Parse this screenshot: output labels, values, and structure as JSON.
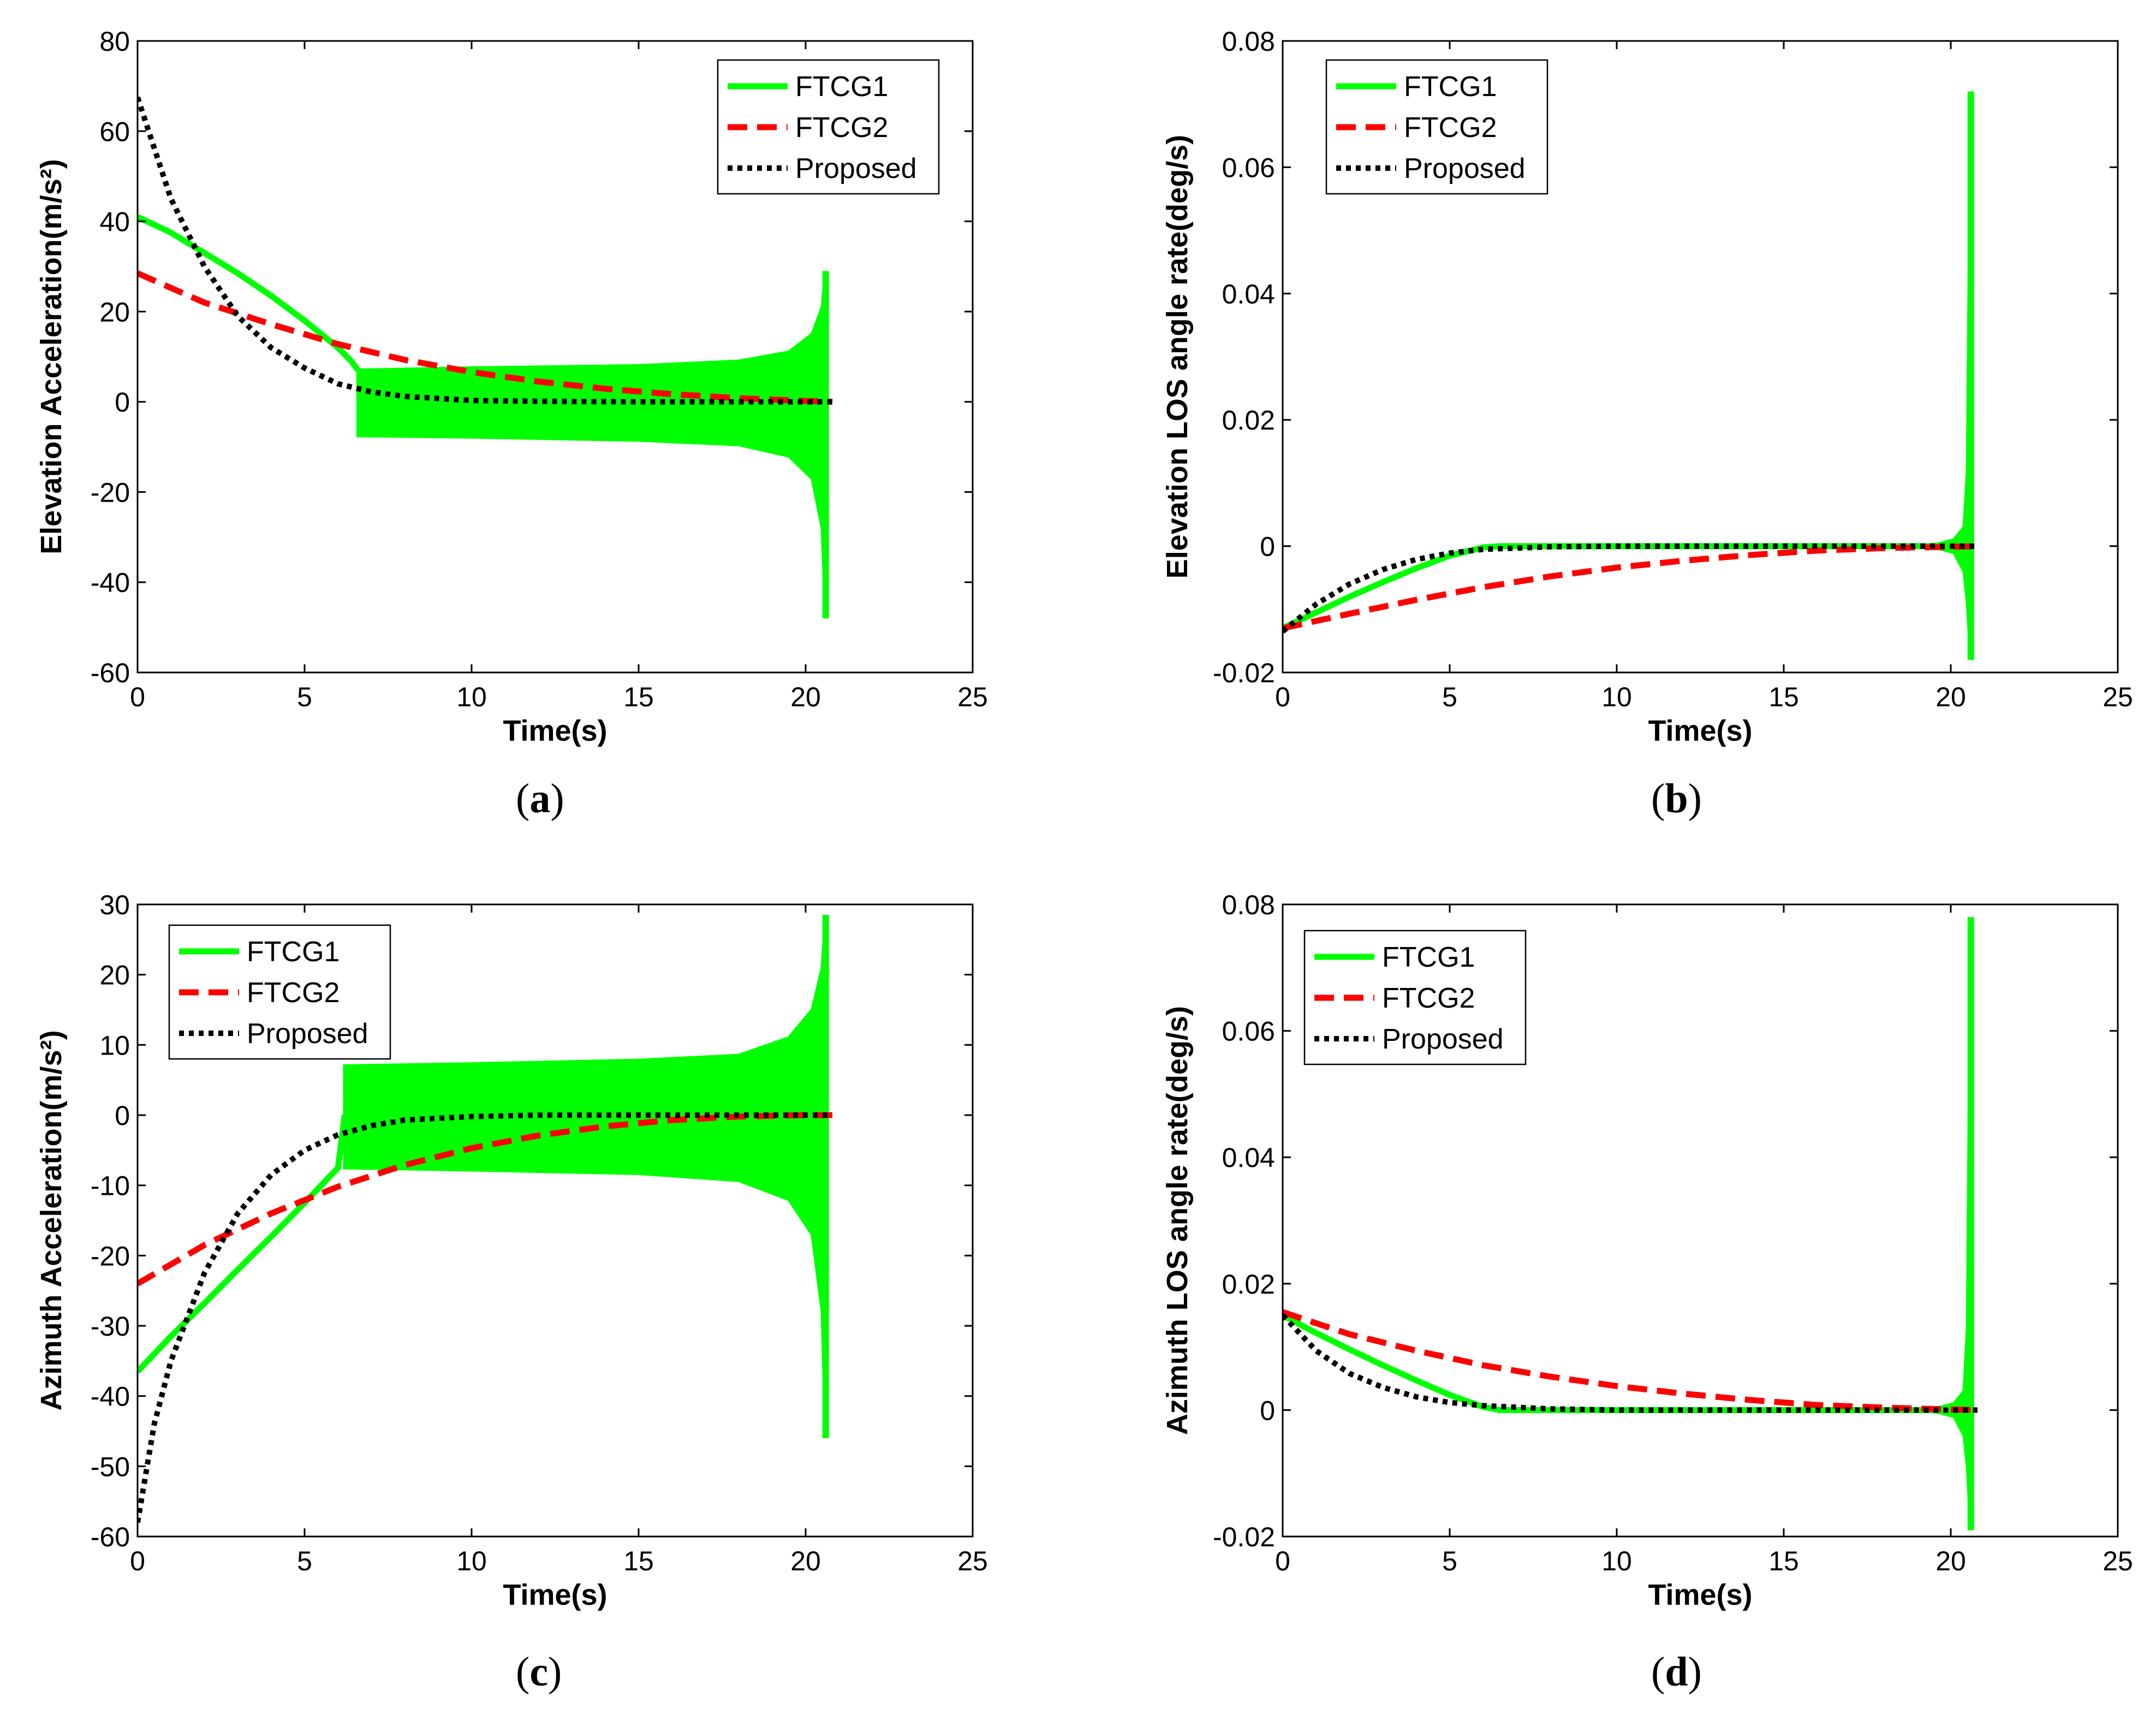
{
  "figure": {
    "panels": [
      {
        "caption_label": "a"
      },
      {
        "caption_label": "b"
      },
      {
        "caption_label": "c"
      },
      {
        "caption_label": "d"
      }
    ]
  },
  "colors": {
    "ftcg1": "#00ff00",
    "ftcg2": "#ff0000",
    "proposed": "#000000",
    "axes": "#000000",
    "background": "#ffffff"
  },
  "chart_data": [
    {
      "id": "a",
      "type": "line",
      "xlabel": "Time(s)",
      "ylabel": "Elevation Acceleration(m/s²)",
      "xlim": [
        0,
        25
      ],
      "ylim": [
        -60,
        80
      ],
      "xticks": [
        0,
        5,
        10,
        15,
        20,
        25
      ],
      "yticks": [
        -60,
        -40,
        -20,
        0,
        20,
        40,
        60,
        80
      ],
      "xtick_labels": [
        "0",
        "5",
        "10",
        "15",
        "20",
        "25"
      ],
      "ytick_labels": [
        "-60",
        "-40",
        "-20",
        "0",
        "20",
        "40",
        "60",
        "80"
      ],
      "legend_placement": "top-right",
      "series": [
        {
          "name": "FTCG1",
          "style": "solid",
          "x": [
            0,
            1,
            2,
            3,
            4,
            5,
            6,
            6.4,
            6.6
          ],
          "y": [
            41,
            37.5,
            33,
            28.5,
            23.5,
            18,
            12,
            9,
            7
          ]
        },
        {
          "name": "FTCG2",
          "style": "dashed",
          "x": [
            0,
            2,
            4,
            6,
            8,
            10,
            12,
            14,
            16,
            18,
            20,
            20.8
          ],
          "y": [
            28.5,
            22,
            17.2,
            12.8,
            9.3,
            6.6,
            4.5,
            2.9,
            1.7,
            0.8,
            0.2,
            0
          ]
        },
        {
          "name": "Proposed",
          "style": "dotted",
          "x": [
            0,
            1,
            2,
            3,
            4,
            5,
            6,
            7,
            8,
            10,
            12,
            15,
            20,
            20.8
          ],
          "y": [
            67.5,
            45,
            30,
            19,
            12,
            7.5,
            4,
            2.2,
            1.2,
            0.3,
            0.1,
            0,
            0,
            0
          ]
        }
      ],
      "oscillation_band": {
        "series": "FTCG1",
        "x_start": 6.6,
        "x_end": 20.6,
        "upper": [
          [
            6.6,
            7
          ],
          [
            10,
            7.5
          ],
          [
            15,
            8
          ],
          [
            18,
            9
          ],
          [
            19.5,
            11
          ],
          [
            20.2,
            15
          ],
          [
            20.5,
            21
          ],
          [
            20.6,
            29
          ]
        ],
        "lower": [
          [
            6.6,
            -7.5
          ],
          [
            10,
            -7.8
          ],
          [
            15,
            -8.5
          ],
          [
            18,
            -9.5
          ],
          [
            19.5,
            -12
          ],
          [
            20.2,
            -17
          ],
          [
            20.5,
            -28
          ],
          [
            20.6,
            -48
          ]
        ]
      }
    },
    {
      "id": "b",
      "type": "line",
      "xlabel": "Time(s)",
      "ylabel": "Elevation LOS angle rate(deg/s)",
      "xlim": [
        0,
        25
      ],
      "ylim": [
        -0.02,
        0.08
      ],
      "xticks": [
        0,
        5,
        10,
        15,
        20,
        25
      ],
      "yticks": [
        -0.02,
        0,
        0.02,
        0.04,
        0.06,
        0.08
      ],
      "xtick_labels": [
        "0",
        "5",
        "10",
        "15",
        "20",
        "25"
      ],
      "ytick_labels": [
        "-0.02",
        "0",
        "0.02",
        "0.04",
        "0.06",
        "0.08"
      ],
      "legend_placement": "top-left",
      "series": [
        {
          "name": "FTCG1",
          "style": "solid",
          "x": [
            0,
            1,
            2,
            3,
            4,
            5,
            6,
            6.5,
            20.6
          ],
          "y": [
            -0.013,
            -0.0105,
            -0.008,
            -0.0057,
            -0.0035,
            -0.0015,
            -0.0002,
            0,
            0
          ]
        },
        {
          "name": "FTCG2",
          "style": "dashed",
          "x": [
            0,
            2,
            4,
            6,
            8,
            10,
            12,
            14,
            16,
            18,
            20,
            20.8
          ],
          "y": [
            -0.013,
            -0.0107,
            -0.0085,
            -0.0065,
            -0.0048,
            -0.0034,
            -0.0023,
            -0.0014,
            -0.0007,
            -0.0003,
            -0.0001,
            0
          ]
        },
        {
          "name": "Proposed",
          "style": "dotted",
          "x": [
            0,
            1,
            2,
            3,
            4,
            5,
            6,
            8,
            10,
            15,
            20,
            20.8
          ],
          "y": [
            -0.0135,
            -0.0092,
            -0.006,
            -0.0037,
            -0.0021,
            -0.0011,
            -0.0005,
            -0.0001,
            0,
            0,
            0,
            0
          ]
        }
      ],
      "oscillation_band": {
        "series": "FTCG1",
        "x_start": 18.8,
        "x_end": 20.6,
        "upper": [
          [
            18.8,
            0
          ],
          [
            19.6,
            0.0003
          ],
          [
            20.1,
            0.001
          ],
          [
            20.4,
            0.003
          ],
          [
            20.5,
            0.012
          ],
          [
            20.6,
            0.072
          ]
        ],
        "lower": [
          [
            18.8,
            0
          ],
          [
            19.6,
            -0.0003
          ],
          [
            20.1,
            -0.001
          ],
          [
            20.4,
            -0.004
          ],
          [
            20.5,
            -0.009
          ],
          [
            20.6,
            -0.018
          ]
        ]
      }
    },
    {
      "id": "c",
      "type": "line",
      "xlabel": "Time(s)",
      "ylabel": "Azimuth Acceleration(m/s²)",
      "xlim": [
        0,
        25
      ],
      "ylim": [
        -60,
        30
      ],
      "xticks": [
        0,
        5,
        10,
        15,
        20,
        25
      ],
      "yticks": [
        -60,
        -50,
        -40,
        -30,
        -20,
        -10,
        0,
        10,
        20,
        30
      ],
      "xtick_labels": [
        "0",
        "5",
        "10",
        "15",
        "20",
        "25"
      ],
      "ytick_labels": [
        "-60",
        "-50",
        "-40",
        "-30",
        "-20",
        "-10",
        "0",
        "10",
        "20",
        "30"
      ],
      "legend_placement": "top-left",
      "series": [
        {
          "name": "FTCG1",
          "style": "solid",
          "x": [
            0,
            1,
            2,
            3,
            4,
            5,
            5.6,
            6,
            6.2
          ],
          "y": [
            -36.5,
            -31.5,
            -26.8,
            -22,
            -17.3,
            -12.5,
            -9.5,
            -7.5,
            0
          ]
        },
        {
          "name": "FTCG2",
          "style": "dashed",
          "x": [
            0,
            2,
            4,
            6,
            8,
            10,
            12,
            14,
            16,
            18,
            20,
            20.8
          ],
          "y": [
            -24,
            -18.5,
            -14,
            -10.2,
            -7.1,
            -4.7,
            -2.9,
            -1.6,
            -0.7,
            -0.2,
            0,
            0
          ]
        },
        {
          "name": "Proposed",
          "style": "dotted",
          "x": [
            0,
            0.5,
            1,
            2,
            3,
            4,
            5,
            6,
            7,
            8,
            10,
            12,
            15,
            20,
            20.8
          ],
          "y": [
            -58,
            -44,
            -35,
            -22.5,
            -14,
            -8.5,
            -5,
            -2.8,
            -1.5,
            -0.7,
            -0.2,
            0,
            0,
            0,
            0
          ]
        }
      ],
      "oscillation_band": {
        "series": "FTCG1",
        "x_start": 6.2,
        "x_end": 20.6,
        "upper": [
          [
            6.2,
            7
          ],
          [
            10,
            7.3
          ],
          [
            15,
            7.8
          ],
          [
            18,
            8.5
          ],
          [
            19.5,
            11
          ],
          [
            20.2,
            15
          ],
          [
            20.5,
            21
          ],
          [
            20.6,
            28.5
          ]
        ],
        "lower": [
          [
            6.2,
            -7.5
          ],
          [
            10,
            -7.8
          ],
          [
            15,
            -8.3
          ],
          [
            18,
            -9.3
          ],
          [
            19.5,
            -12
          ],
          [
            20.2,
            -17
          ],
          [
            20.5,
            -28
          ],
          [
            20.6,
            -46
          ]
        ]
      }
    },
    {
      "id": "d",
      "type": "line",
      "xlabel": "Time(s)",
      "ylabel": "Azimuth LOS angle rate(deg/s)",
      "xlim": [
        0,
        25
      ],
      "ylim": [
        -0.02,
        0.08
      ],
      "xticks": [
        0,
        5,
        10,
        15,
        20,
        25
      ],
      "yticks": [
        -0.02,
        0,
        0.02,
        0.04,
        0.06,
        0.08
      ],
      "xtick_labels": [
        "0",
        "5",
        "10",
        "15",
        "20",
        "25"
      ],
      "ytick_labels": [
        "-0.02",
        "0",
        "0.02",
        "0.04",
        "0.06",
        "0.08"
      ],
      "legend_placement": "top-left",
      "series": [
        {
          "name": "FTCG1",
          "style": "solid",
          "x": [
            0,
            1,
            2,
            3,
            4,
            5,
            6,
            6.5,
            20.6
          ],
          "y": [
            0.015,
            0.0122,
            0.0096,
            0.0071,
            0.0047,
            0.0024,
            0.0005,
            0,
            0
          ]
        },
        {
          "name": "FTCG2",
          "style": "dashed",
          "x": [
            0,
            2,
            4,
            6,
            8,
            10,
            12,
            14,
            16,
            18,
            20,
            20.8
          ],
          "y": [
            0.0155,
            0.012,
            0.0094,
            0.0071,
            0.0053,
            0.0038,
            0.0026,
            0.0016,
            0.0008,
            0.0004,
            0.0001,
            0
          ]
        },
        {
          "name": "Proposed",
          "style": "dotted",
          "x": [
            0,
            1,
            2,
            3,
            4,
            5,
            6,
            8,
            10,
            15,
            20,
            20.8
          ],
          "y": [
            0.015,
            0.0094,
            0.0058,
            0.0036,
            0.0021,
            0.0012,
            0.0007,
            0.0002,
            0,
            0,
            0,
            0
          ]
        }
      ],
      "oscillation_band": {
        "series": "FTCG1",
        "x_start": 18.8,
        "x_end": 20.6,
        "upper": [
          [
            18.8,
            0
          ],
          [
            19.6,
            0.0003
          ],
          [
            20.1,
            0.001
          ],
          [
            20.4,
            0.003
          ],
          [
            20.5,
            0.013
          ],
          [
            20.6,
            0.078
          ]
        ],
        "lower": [
          [
            18.8,
            0
          ],
          [
            19.6,
            -0.0003
          ],
          [
            20.1,
            -0.001
          ],
          [
            20.4,
            -0.004
          ],
          [
            20.5,
            -0.009
          ],
          [
            20.6,
            -0.019
          ]
        ]
      }
    }
  ]
}
